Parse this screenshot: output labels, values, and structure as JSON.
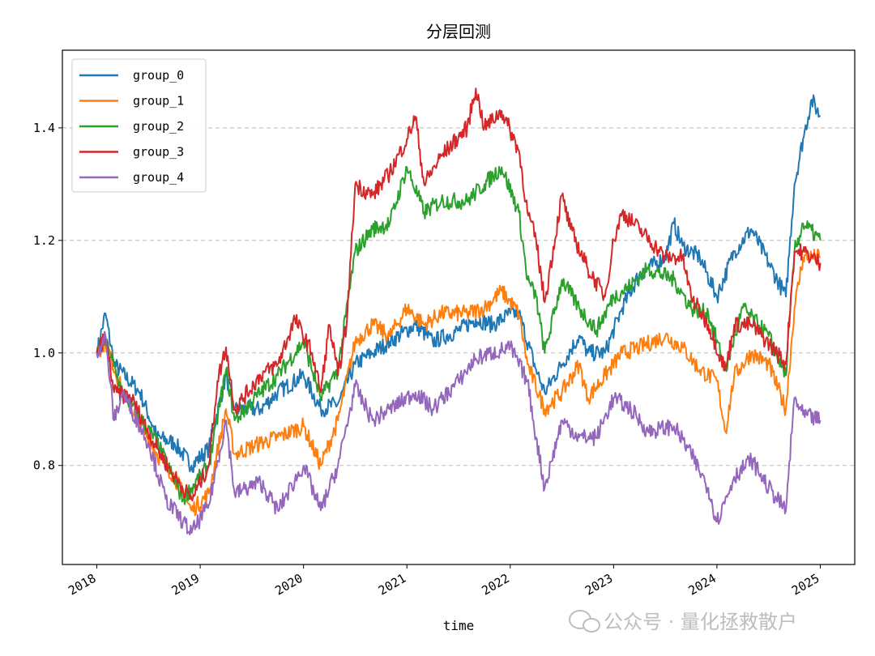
{
  "chart_data": {
    "type": "line",
    "title": "分层回测",
    "xlabel": "time",
    "ylabel": "",
    "xlim": [
      "2017-09",
      "2025-05"
    ],
    "ylim": [
      0.624,
      1.538
    ],
    "x_ticks": [
      "2018",
      "2019",
      "2020",
      "2021",
      "2022",
      "2023",
      "2024",
      "2025"
    ],
    "y_ticks": [
      "0.8",
      "1.0",
      "1.2",
      "1.4"
    ],
    "grid": "horizontal dashed",
    "legend_position": "top-left",
    "series": [
      {
        "name": "group_0",
        "color": "#1f77b4",
        "points": [
          [
            "2018-01",
            1.0
          ],
          [
            "2018-02",
            1.07
          ],
          [
            "2018-03",
            0.98
          ],
          [
            "2018-06",
            0.93
          ],
          [
            "2018-08",
            0.85
          ],
          [
            "2018-10",
            0.84
          ],
          [
            "2018-12",
            0.8
          ],
          [
            "2019-02",
            0.83
          ],
          [
            "2019-04",
            0.96
          ],
          [
            "2019-05",
            0.9
          ],
          [
            "2019-08",
            0.9
          ],
          [
            "2019-10",
            0.93
          ],
          [
            "2020-01",
            0.96
          ],
          [
            "2020-03",
            0.9
          ],
          [
            "2020-05",
            0.91
          ],
          [
            "2020-07",
            0.98
          ],
          [
            "2020-09",
            1.0
          ],
          [
            "2020-11",
            1.02
          ],
          [
            "2021-02",
            1.05
          ],
          [
            "2021-04",
            1.02
          ],
          [
            "2021-07",
            1.04
          ],
          [
            "2021-09",
            1.06
          ],
          [
            "2021-11",
            1.05
          ],
          [
            "2022-01",
            1.07
          ],
          [
            "2022-02",
            1.07
          ],
          [
            "2022-04",
            0.97
          ],
          [
            "2022-05",
            0.93
          ],
          [
            "2022-07",
            0.98
          ],
          [
            "2022-09",
            1.03
          ],
          [
            "2022-10",
            1.0
          ],
          [
            "2022-12",
            1.0
          ],
          [
            "2023-02",
            1.08
          ],
          [
            "2023-04",
            1.14
          ],
          [
            "2023-07",
            1.17
          ],
          [
            "2023-08",
            1.23
          ],
          [
            "2023-09",
            1.19
          ],
          [
            "2023-11",
            1.17
          ],
          [
            "2024-01",
            1.1
          ],
          [
            "2024-03",
            1.18
          ],
          [
            "2024-05",
            1.22
          ],
          [
            "2024-07",
            1.16
          ],
          [
            "2024-09",
            1.1
          ],
          [
            "2024-10",
            1.3
          ],
          [
            "2024-11",
            1.38
          ],
          [
            "2024-12",
            1.45
          ],
          [
            "2025-01",
            1.42
          ]
        ]
      },
      {
        "name": "group_1",
        "color": "#ff7f0e",
        "points": [
          [
            "2018-01",
            1.0
          ],
          [
            "2018-02",
            1.02
          ],
          [
            "2018-04",
            0.93
          ],
          [
            "2018-08",
            0.82
          ],
          [
            "2018-10",
            0.78
          ],
          [
            "2018-12",
            0.72
          ],
          [
            "2019-02",
            0.75
          ],
          [
            "2019-04",
            0.9
          ],
          [
            "2019-05",
            0.82
          ],
          [
            "2019-08",
            0.84
          ],
          [
            "2019-10",
            0.85
          ],
          [
            "2020-01",
            0.87
          ],
          [
            "2020-03",
            0.8
          ],
          [
            "2020-05",
            0.88
          ],
          [
            "2020-07",
            1.02
          ],
          [
            "2020-09",
            1.05
          ],
          [
            "2020-11",
            1.03
          ],
          [
            "2021-01",
            1.08
          ],
          [
            "2021-03",
            1.05
          ],
          [
            "2021-05",
            1.07
          ],
          [
            "2021-08",
            1.07
          ],
          [
            "2021-10",
            1.08
          ],
          [
            "2021-12",
            1.11
          ],
          [
            "2022-02",
            1.07
          ],
          [
            "2022-03",
            0.98
          ],
          [
            "2022-05",
            0.9
          ],
          [
            "2022-07",
            0.93
          ],
          [
            "2022-09",
            0.98
          ],
          [
            "2022-10",
            0.92
          ],
          [
            "2022-12",
            0.96
          ],
          [
            "2023-02",
            1.0
          ],
          [
            "2023-04",
            1.01
          ],
          [
            "2023-07",
            1.03
          ],
          [
            "2023-09",
            1.01
          ],
          [
            "2023-11",
            0.97
          ],
          [
            "2024-01",
            0.95
          ],
          [
            "2024-02",
            0.86
          ],
          [
            "2024-03",
            0.96
          ],
          [
            "2024-05",
            1.0
          ],
          [
            "2024-07",
            0.98
          ],
          [
            "2024-09",
            0.9
          ],
          [
            "2024-10",
            1.08
          ],
          [
            "2024-11",
            1.17
          ],
          [
            "2025-01",
            1.17
          ]
        ]
      },
      {
        "name": "group_2",
        "color": "#2ca02c",
        "points": [
          [
            "2018-01",
            1.0
          ],
          [
            "2018-02",
            1.02
          ],
          [
            "2018-04",
            0.93
          ],
          [
            "2018-08",
            0.84
          ],
          [
            "2018-11",
            0.74
          ],
          [
            "2019-02",
            0.8
          ],
          [
            "2019-04",
            0.97
          ],
          [
            "2019-05",
            0.88
          ],
          [
            "2019-08",
            0.93
          ],
          [
            "2019-10",
            0.96
          ],
          [
            "2020-01",
            1.02
          ],
          [
            "2020-03",
            0.92
          ],
          [
            "2020-05",
            0.97
          ],
          [
            "2020-07",
            1.18
          ],
          [
            "2020-09",
            1.22
          ],
          [
            "2020-11",
            1.23
          ],
          [
            "2021-01",
            1.33
          ],
          [
            "2021-03",
            1.25
          ],
          [
            "2021-05",
            1.27
          ],
          [
            "2021-08",
            1.27
          ],
          [
            "2021-10",
            1.3
          ],
          [
            "2021-12",
            1.33
          ],
          [
            "2022-02",
            1.25
          ],
          [
            "2022-03",
            1.13
          ],
          [
            "2022-04",
            1.1
          ],
          [
            "2022-05",
            1.0
          ],
          [
            "2022-07",
            1.13
          ],
          [
            "2022-09",
            1.08
          ],
          [
            "2022-11",
            1.04
          ],
          [
            "2023-01",
            1.1
          ],
          [
            "2023-03",
            1.12
          ],
          [
            "2023-05",
            1.15
          ],
          [
            "2023-08",
            1.13
          ],
          [
            "2023-10",
            1.08
          ],
          [
            "2023-12",
            1.07
          ],
          [
            "2024-02",
            0.97
          ],
          [
            "2024-04",
            1.08
          ],
          [
            "2024-07",
            1.03
          ],
          [
            "2024-09",
            0.96
          ],
          [
            "2024-10",
            1.18
          ],
          [
            "2024-11",
            1.23
          ],
          [
            "2025-01",
            1.2
          ]
        ]
      },
      {
        "name": "group_3",
        "color": "#d62728",
        "points": [
          [
            "2018-01",
            1.0
          ],
          [
            "2018-02",
            1.03
          ],
          [
            "2018-03",
            0.93
          ],
          [
            "2018-05",
            0.92
          ],
          [
            "2018-08",
            0.83
          ],
          [
            "2018-10",
            0.78
          ],
          [
            "2018-12",
            0.74
          ],
          [
            "2019-02",
            0.8
          ],
          [
            "2019-03",
            0.95
          ],
          [
            "2019-04",
            1.01
          ],
          [
            "2019-05",
            0.9
          ],
          [
            "2019-08",
            0.96
          ],
          [
            "2019-10",
            0.98
          ],
          [
            "2019-12",
            1.06
          ],
          [
            "2020-02",
            1.0
          ],
          [
            "2020-03",
            0.93
          ],
          [
            "2020-04",
            1.05
          ],
          [
            "2020-05",
            0.96
          ],
          [
            "2020-06",
            1.05
          ],
          [
            "2020-07",
            1.3
          ],
          [
            "2020-09",
            1.28
          ],
          [
            "2020-11",
            1.32
          ],
          [
            "2021-01",
            1.38
          ],
          [
            "2021-02",
            1.42
          ],
          [
            "2021-03",
            1.3
          ],
          [
            "2021-05",
            1.35
          ],
          [
            "2021-08",
            1.4
          ],
          [
            "2021-09",
            1.47
          ],
          [
            "2021-10",
            1.4
          ],
          [
            "2021-12",
            1.43
          ],
          [
            "2022-02",
            1.36
          ],
          [
            "2022-03",
            1.25
          ],
          [
            "2022-04",
            1.2
          ],
          [
            "2022-05",
            1.09
          ],
          [
            "2022-07",
            1.28
          ],
          [
            "2022-08",
            1.22
          ],
          [
            "2022-10",
            1.15
          ],
          [
            "2022-12",
            1.1
          ],
          [
            "2023-01",
            1.2
          ],
          [
            "2023-02",
            1.25
          ],
          [
            "2023-04",
            1.22
          ],
          [
            "2023-07",
            1.17
          ],
          [
            "2023-09",
            1.17
          ],
          [
            "2023-10",
            1.1
          ],
          [
            "2023-12",
            1.05
          ],
          [
            "2024-02",
            0.97
          ],
          [
            "2024-03",
            1.05
          ],
          [
            "2024-05",
            1.05
          ],
          [
            "2024-08",
            1.0
          ],
          [
            "2024-09",
            0.98
          ],
          [
            "2024-10",
            1.18
          ],
          [
            "2024-11",
            1.18
          ],
          [
            "2025-01",
            1.16
          ]
        ]
      },
      {
        "name": "group_4",
        "color": "#9467bd",
        "points": [
          [
            "2018-01",
            1.0
          ],
          [
            "2018-02",
            1.03
          ],
          [
            "2018-03",
            0.88
          ],
          [
            "2018-04",
            0.93
          ],
          [
            "2018-07",
            0.84
          ],
          [
            "2018-09",
            0.74
          ],
          [
            "2018-11",
            0.7
          ],
          [
            "2018-12",
            0.68
          ],
          [
            "2019-02",
            0.73
          ],
          [
            "2019-04",
            0.88
          ],
          [
            "2019-05",
            0.75
          ],
          [
            "2019-08",
            0.77
          ],
          [
            "2019-10",
            0.72
          ],
          [
            "2020-01",
            0.8
          ],
          [
            "2020-03",
            0.72
          ],
          [
            "2020-05",
            0.8
          ],
          [
            "2020-07",
            0.94
          ],
          [
            "2020-09",
            0.88
          ],
          [
            "2020-11",
            0.9
          ],
          [
            "2021-02",
            0.93
          ],
          [
            "2021-04",
            0.9
          ],
          [
            "2021-07",
            0.95
          ],
          [
            "2021-09",
            0.99
          ],
          [
            "2021-11",
            1.0
          ],
          [
            "2022-01",
            1.01
          ],
          [
            "2022-03",
            0.95
          ],
          [
            "2022-04",
            0.85
          ],
          [
            "2022-05",
            0.76
          ],
          [
            "2022-07",
            0.88
          ],
          [
            "2022-09",
            0.85
          ],
          [
            "2022-11",
            0.85
          ],
          [
            "2023-01",
            0.92
          ],
          [
            "2023-03",
            0.9
          ],
          [
            "2023-05",
            0.86
          ],
          [
            "2023-08",
            0.87
          ],
          [
            "2023-10",
            0.82
          ],
          [
            "2023-12",
            0.76
          ],
          [
            "2024-01",
            0.7
          ],
          [
            "2024-03",
            0.78
          ],
          [
            "2024-05",
            0.81
          ],
          [
            "2024-07",
            0.76
          ],
          [
            "2024-09",
            0.72
          ],
          [
            "2024-10",
            0.92
          ],
          [
            "2024-11",
            0.89
          ],
          [
            "2025-01",
            0.88
          ]
        ]
      }
    ]
  },
  "watermark": "公众号 · 量化拯救散户"
}
